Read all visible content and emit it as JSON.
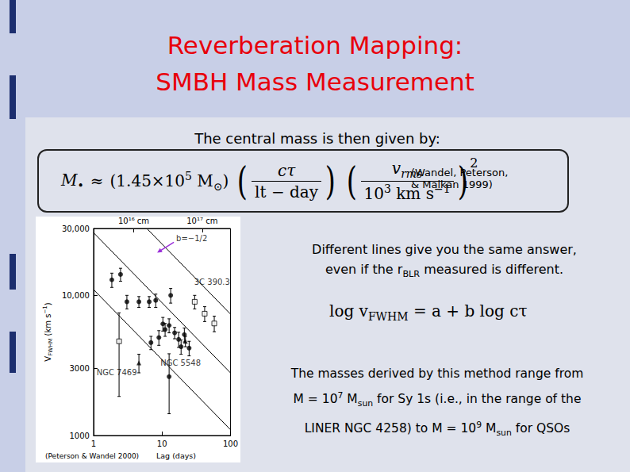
{
  "slide": {
    "title": [
      "Reverberation Mapping:",
      "SMBH Mass Measurement"
    ],
    "intro": "The central mass is then given by:",
    "formula": {
      "lhs": [
        {
          "text": "M"
        },
        {
          "sub": "•"
        }
      ],
      "relation": "≈",
      "coefficient": [
        {
          "text": "(1.45×10"
        },
        {
          "sup": "5"
        },
        {
          "text": " M"
        },
        {
          "sub": "⊙"
        },
        {
          "text": ")"
        }
      ],
      "fraction1": {
        "numerator": [
          {
            "text": "cτ"
          }
        ],
        "denominator": [
          {
            "text": "lt − day"
          }
        ]
      },
      "fraction2": {
        "numerator": [
          {
            "text": "v"
          },
          {
            "sub": "rms"
          }
        ],
        "denominator": [
          {
            "text": "10"
          },
          {
            "sup": "3"
          },
          {
            "text": " km s"
          },
          {
            "sup": "−1"
          }
        ]
      },
      "exponent": "2"
    },
    "citation": [
      "(Wandel, Peterson,",
      "& Malkan 1999)"
    ],
    "note": [
      [
        {
          "text": "Different lines give you the same answer,"
        }
      ],
      [
        {
          "text": "even if the r"
        },
        {
          "sub": "BLR"
        },
        {
          "text": " measured is different."
        }
      ]
    ],
    "relation": [
      {
        "text": "log v"
      },
      {
        "sub": "FWHM"
      },
      {
        "text": " = a + b log cτ"
      }
    ],
    "summary": [
      [
        {
          "text": "The masses derived by this method range from"
        }
      ],
      [
        {
          "text": "M = 10"
        },
        {
          "sup": "7"
        },
        {
          "text": " M"
        },
        {
          "sub": "sun"
        },
        {
          "text": " for Sy 1s (i.e., in the range of the"
        }
      ],
      [
        {
          "text": "LINER NGC 4258) to M = 10"
        },
        {
          "sup": "9"
        },
        {
          "text": " M"
        },
        {
          "sub": "sun"
        },
        {
          "text": " for QSOs"
        }
      ]
    ]
  },
  "chart_data": {
    "type": "scatter",
    "xlabel": "Lag (days)",
    "ylabel": [
      {
        "text": "V"
      },
      {
        "sub": "FWHM"
      },
      {
        "text": " (km s"
      },
      {
        "sup": "−1"
      },
      {
        "text": ")"
      }
    ],
    "log": true,
    "grid": false,
    "xlim": [
      1,
      100
    ],
    "xticks": [
      1,
      10,
      100
    ],
    "ylim": [
      1000,
      30000
    ],
    "yticks": [
      1000,
      3000,
      {
        "value": 10000,
        "label": "10,000"
      },
      {
        "value": 30000,
        "label": "30,000"
      }
    ],
    "x2lim": [
      2590000000000000,
      259000000000000000
    ],
    "x2ticks": [
      {
        "value": 10000000000000000,
        "label": "10¹⁶ cm"
      },
      {
        "value": 100000000000000000,
        "label": "10¹⁷ cm"
      }
    ],
    "series": [
      {
        "type": "line",
        "color": "#000000",
        "line_style": "solid",
        "x": [
          6,
          100
        ],
        "values": [
          30000,
          7350
        ]
      },
      {
        "type": "line",
        "color": "#000000",
        "line_style": "solid",
        "x": [
          1,
          100
        ],
        "values": [
          28000,
          2800
        ]
      },
      {
        "type": "line",
        "color": "#000000",
        "line_style": "solid",
        "x": [
          1,
          100
        ],
        "values": [
          11000,
          1100
        ]
      },
      {
        "type": "scatter",
        "marker": "circle",
        "color": "#000000",
        "x": [
          1.85,
          2.48,
          3.07,
          4.6,
          6.5,
          8.1,
          13.4,
          10.3,
          11.1,
          12.7,
          15.3,
          17.5,
          19.0,
          9.0,
          6.9,
          24.9,
          21.2,
          12.7
        ],
        "values": [
          12900,
          14100,
          9000,
          9000,
          9000,
          9200,
          10000,
          6260,
          5700,
          6100,
          5400,
          4850,
          4300,
          5000,
          4600,
          4200,
          5250,
          2630
        ],
        "yerr": [
          1500,
          1500,
          1000,
          800,
          800,
          1000,
          1200,
          700,
          600,
          700,
          500,
          600,
          500,
          600,
          500,
          500,
          600,
          1200
        ]
      },
      {
        "type": "scatter",
        "marker": "open_square",
        "color": "#000000",
        "x": [
          30,
          42,
          58,
          2.36
        ],
        "values": [
          9000,
          7400,
          6300,
          4700
        ],
        "yerr": [
          1000,
          900,
          800,
          2800
        ]
      },
      {
        "type": "scatter",
        "marker": "triangle",
        "color": "#000000",
        "x": [
          4.6,
          22
        ],
        "values": [
          3300,
          4700
        ],
        "yerr": [
          500,
          400
        ]
      }
    ],
    "annotations": [
      {
        "text": "3C 390.3",
        "x": 28,
        "y": 12400
      },
      {
        "text": "NGC 7469",
        "x": 1.05,
        "y": 2830
      },
      {
        "text": "NGC 5548",
        "x": 9.0,
        "y": 3300
      }
    ],
    "slope_label": {
      "text": "b=−1/2",
      "x": 15.3,
      "y": 25500
    },
    "credit": "(Peterson & Wandel 2000)"
  }
}
